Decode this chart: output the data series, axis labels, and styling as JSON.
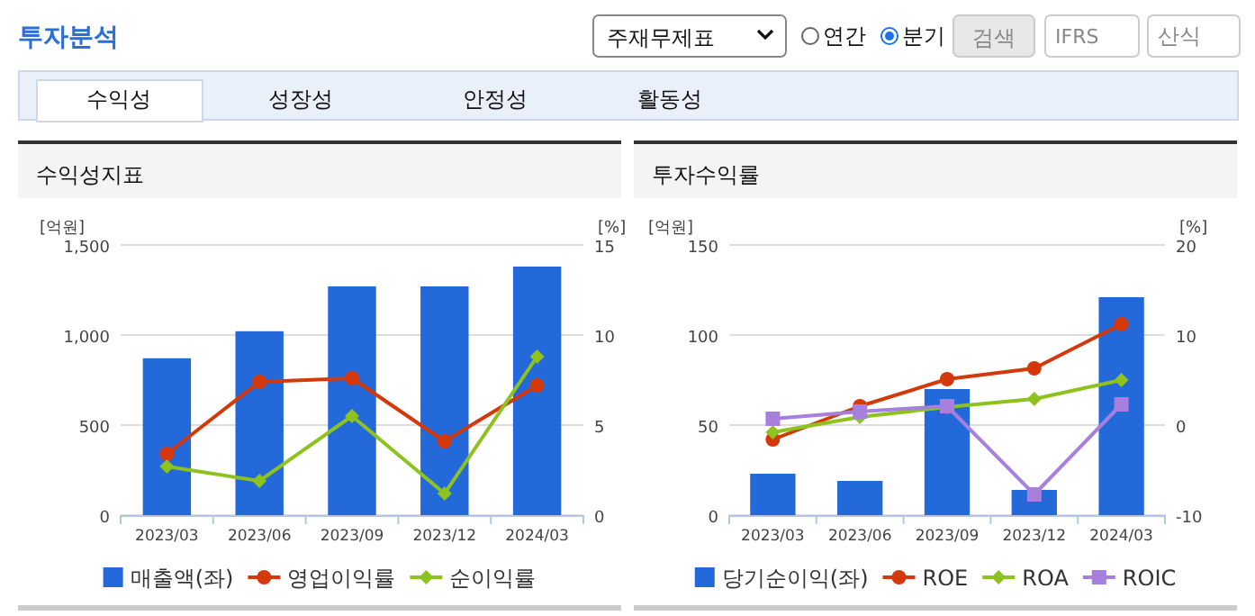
{
  "chart_data": [
    {
      "type": "other",
      "title": "투자분석",
      "annotations": [
        "주재무제표",
        "연간",
        "분기",
        "검색",
        "IFRS",
        "산식",
        "수익성",
        "성장성",
        "안정성",
        "활동성"
      ]
    },
    {
      "type": "bar",
      "title": "수익성지표",
      "ylabel": "[억원]",
      "y2label": "[%]",
      "categories": [
        "2023/03",
        "2023/06",
        "2023/09",
        "2023/12",
        "2024/03"
      ],
      "ylim": [
        0,
        1500
      ],
      "yticks": [
        0,
        500,
        {
          "value": 1000,
          "label": "1,000"
        },
        {
          "value": 1500,
          "label": "1,500"
        }
      ],
      "y2lim": [
        0,
        15
      ],
      "y2ticks": [
        0,
        5,
        10,
        15
      ],
      "grid": "y",
      "legend": "bottom",
      "series": [
        {
          "name": "매출액(좌)",
          "type": "bar",
          "color": "#2469da",
          "values": [
            871,
            1021,
            1270,
            1270,
            1380
          ]
        },
        {
          "name": "영업이익률",
          "type": "line",
          "axis": "y2",
          "marker": "circle",
          "color": "#d3390b",
          "values": [
            3.4,
            7.4,
            7.6,
            4.1,
            7.2
          ]
        },
        {
          "name": "순이익률",
          "type": "line",
          "axis": "y2",
          "marker": "diamond",
          "color": "#8dc21f",
          "values": [
            2.7,
            1.9,
            5.5,
            1.2,
            8.8
          ]
        }
      ]
    },
    {
      "type": "bar",
      "title": "투자수익률",
      "ylabel": "[억원]",
      "y2label": "[%]",
      "categories": [
        "2023/03",
        "2023/06",
        "2023/09",
        "2023/12",
        "2024/03"
      ],
      "ylim": [
        0,
        150
      ],
      "yticks": [
        0,
        50,
        100,
        150
      ],
      "y2lim": [
        -10,
        20
      ],
      "y2ticks": [
        -10,
        0,
        10,
        20
      ],
      "grid": "y",
      "legend": "bottom",
      "series": [
        {
          "name": "당기순이익(좌)",
          "type": "bar",
          "color": "#2469da",
          "values": [
            23,
            19,
            70,
            14,
            121
          ]
        },
        {
          "name": "ROE",
          "type": "line",
          "axis": "y2",
          "marker": "circle",
          "color": "#d3390b",
          "values": [
            -1.6,
            2.1,
            5.1,
            6.3,
            11.2
          ]
        },
        {
          "name": "ROA",
          "type": "line",
          "axis": "y2",
          "marker": "diamond",
          "color": "#8dc21f",
          "values": [
            -0.8,
            0.9,
            2.0,
            2.9,
            5.0
          ]
        },
        {
          "name": "ROIC",
          "type": "line",
          "axis": "y2",
          "marker": "square",
          "color": "#a77fdd",
          "values": [
            0.7,
            1.5,
            2.1,
            -7.7,
            2.3
          ]
        }
      ]
    }
  ]
}
